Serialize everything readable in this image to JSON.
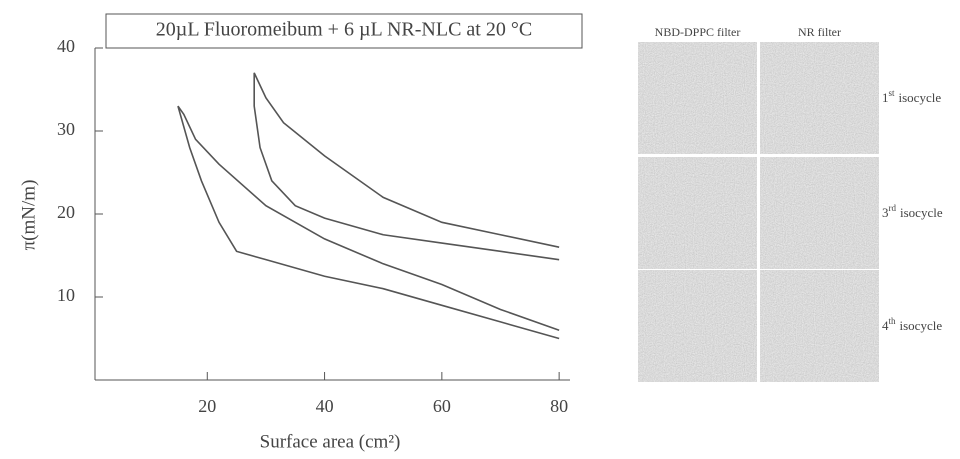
{
  "chart_data": {
    "type": "line",
    "title": "20µL Fluoromeibum + 6 µL NR-NLC at 20 °C",
    "xlabel": "Surface area (cm²)",
    "ylabel": "π(mN/m)",
    "xlim": [
      0,
      81
    ],
    "ylim": [
      0,
      40
    ],
    "xticks": [
      20,
      40,
      60,
      80
    ],
    "yticks": [
      10,
      20,
      30,
      40
    ],
    "series": [
      {
        "color": "#555555",
        "x": [
          80,
          70,
          60,
          50,
          40,
          30,
          25,
          22,
          19,
          17,
          15,
          16,
          18,
          22,
          30,
          40,
          50,
          60,
          70,
          80
        ],
        "values": [
          5,
          7,
          9,
          11,
          12.5,
          14.5,
          15.5,
          19,
          24,
          28,
          33,
          32,
          29,
          26,
          21,
          17,
          14,
          11.5,
          8.5,
          6
        ]
      },
      {
        "color": "#555555",
        "x": [
          80,
          70,
          60,
          50,
          40,
          35,
          31,
          29,
          28,
          28,
          30,
          33,
          40,
          50,
          60,
          70,
          80
        ],
        "values": [
          14.5,
          15.5,
          16.5,
          17.5,
          19.5,
          21,
          24,
          28,
          33,
          37,
          34,
          31,
          27,
          22,
          19,
          17.5,
          16
        ]
      }
    ],
    "panel": {
      "columns": [
        "NBD-DPPC filter",
        "NR filter"
      ],
      "rows": [
        {
          "number": "1",
          "suffix": "st",
          "label": "isocycle"
        },
        {
          "number": "3",
          "suffix": "rd",
          "label": "isocycle"
        },
        {
          "number": "4",
          "suffix": "th",
          "label": "isocycle"
        }
      ]
    }
  }
}
